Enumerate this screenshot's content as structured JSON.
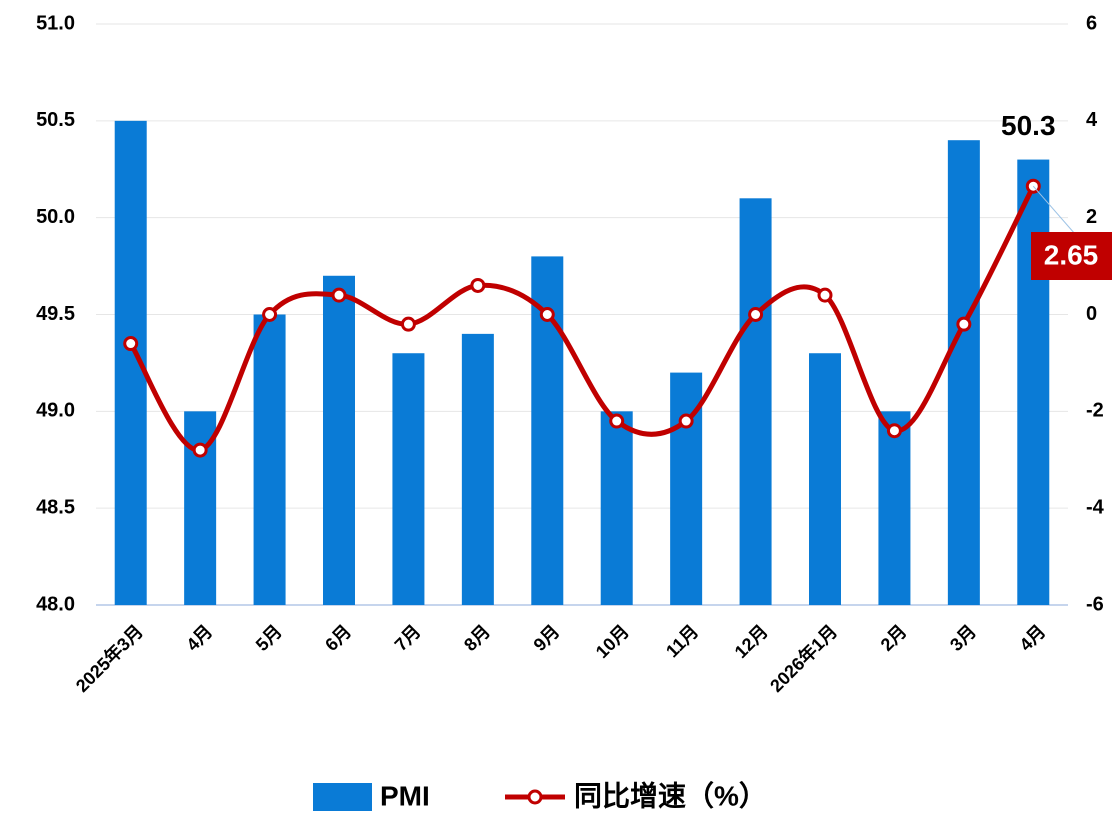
{
  "chart_data": {
    "type": "bar",
    "categories": [
      "2025年3月",
      "4月",
      "5月",
      "6月",
      "7月",
      "8月",
      "9月",
      "10月",
      "11月",
      "12月",
      "2026年1月",
      "2月",
      "3月",
      "4月"
    ],
    "series": [
      {
        "name": "PMI",
        "type": "bar",
        "color": "#0a7bd6",
        "values": [
          50.5,
          49.0,
          49.5,
          49.7,
          49.3,
          49.4,
          49.8,
          49.0,
          49.2,
          50.1,
          49.3,
          49.0,
          50.4,
          50.3
        ],
        "value_labels": [
          null,
          null,
          null,
          null,
          null,
          null,
          null,
          null,
          null,
          null,
          null,
          null,
          null,
          "50.3"
        ]
      },
      {
        "name": "同比增速（%）",
        "type": "line",
        "axis": "y2",
        "color": "#c00000",
        "values": [
          -0.6,
          -2.8,
          0,
          0.4,
          -0.2,
          0.6,
          0,
          -2.2,
          -2.2,
          0,
          0.4,
          -2.4,
          -0.2,
          2.65
        ],
        "value_labels": [
          null,
          null,
          null,
          null,
          null,
          null,
          null,
          null,
          null,
          null,
          null,
          null,
          null,
          "2.65"
        ]
      }
    ],
    "ylim": [
      48,
      51
    ],
    "yticks": [
      {
        "value": 48,
        "label": "48.0"
      },
      48.5,
      {
        "value": 49,
        "label": "49.0"
      },
      49.5,
      {
        "value": 50,
        "label": "50.0"
      },
      50.5,
      {
        "value": 51,
        "label": "51.0"
      }
    ],
    "y2lim": [
      -6,
      6
    ],
    "y2ticks": [
      -6,
      -4,
      -2,
      0,
      2,
      4,
      6
    ],
    "grid": true,
    "legend": "bottom"
  }
}
